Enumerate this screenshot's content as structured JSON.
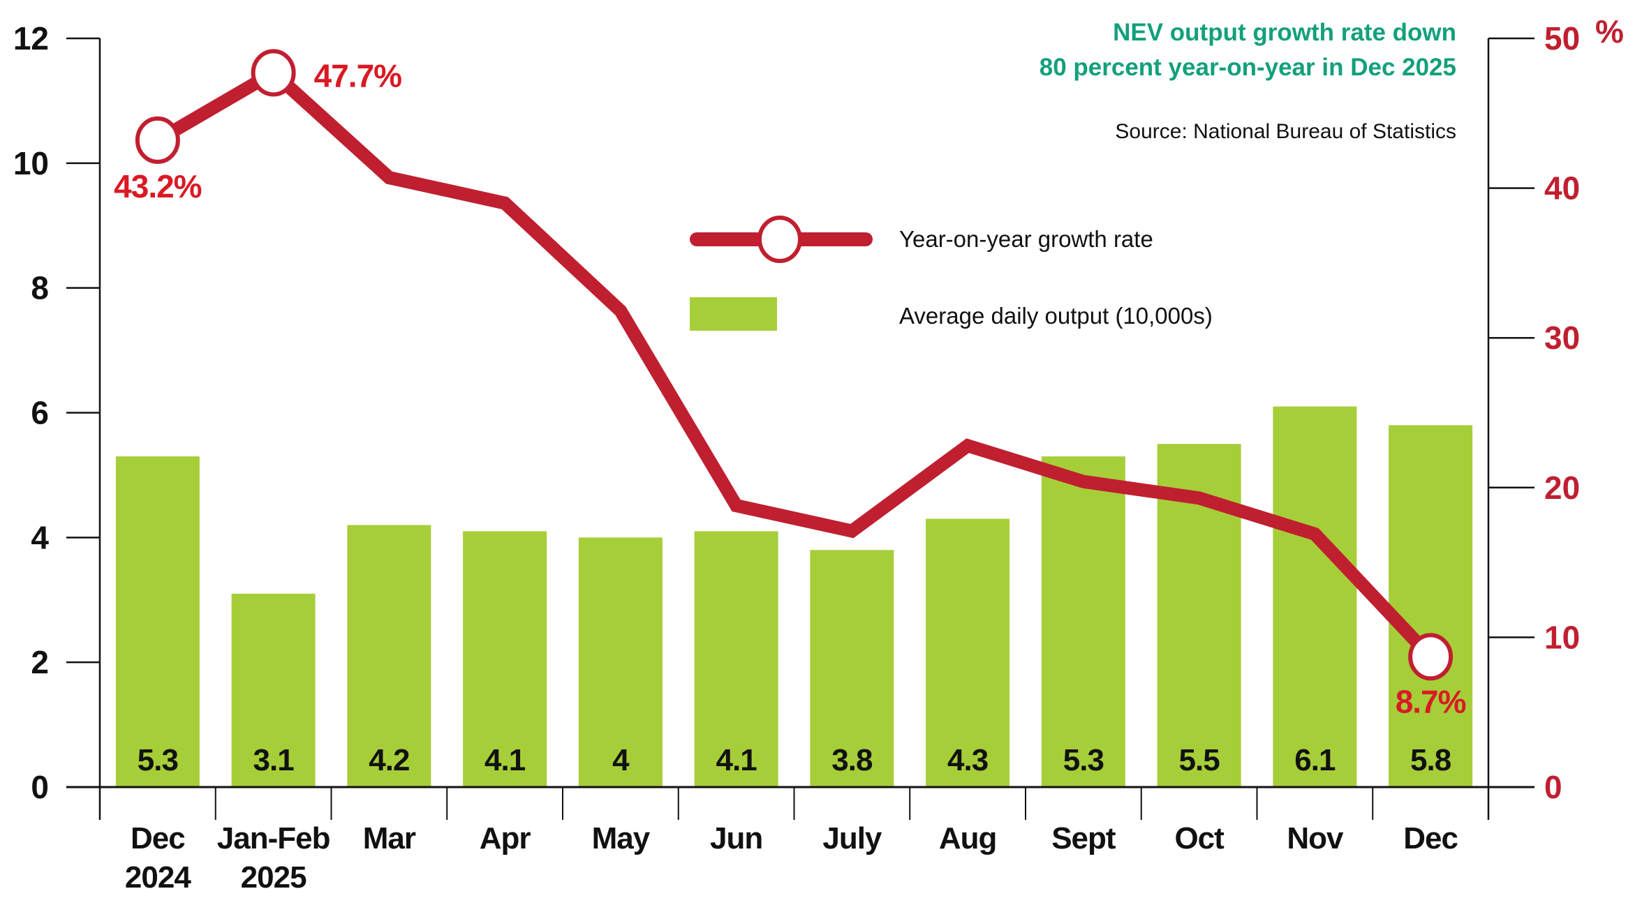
{
  "chart_data": {
    "type": "bar+line",
    "title": "NEV output growth rate down",
    "title_line2": "80 percent year-on-year in Dec 2025",
    "source": "Source: National Bureau of Statistics",
    "categories": [
      [
        "Dec",
        "2024"
      ],
      [
        "Jan-Feb",
        "2025"
      ],
      [
        "Mar"
      ],
      [
        "Apr"
      ],
      [
        "May"
      ],
      [
        "Jun"
      ],
      [
        "July"
      ],
      [
        "Aug"
      ],
      [
        "Sept"
      ],
      [
        "Oct"
      ],
      [
        "Nov"
      ],
      [
        "Dec"
      ]
    ],
    "series": [
      {
        "name": "Average daily output (10,000s)",
        "type": "bar",
        "axis": "left",
        "color": "#a6ce39",
        "values": [
          5.3,
          3.1,
          4.2,
          4.1,
          4,
          4.1,
          3.8,
          4.3,
          5.3,
          5.5,
          6.1,
          5.8
        ],
        "labels": [
          "5.3",
          "3.1",
          "4.2",
          "4.1",
          "4",
          "4.1",
          "3.8",
          "4.3",
          "5.3",
          "5.5",
          "6.1",
          "5.8"
        ]
      },
      {
        "name": "Year-on-year growth rate",
        "type": "line",
        "axis": "right",
        "color": "#c01f30",
        "values": [
          43.2,
          47.7,
          40.7,
          39.0,
          31.8,
          18.8,
          17.1,
          22.8,
          20.4,
          19.3,
          16.9,
          8.7
        ],
        "annotations": [
          {
            "index": 0,
            "text": "43.2%"
          },
          {
            "index": 1,
            "text": "47.7%"
          },
          {
            "index": 11,
            "text": "8.7%"
          }
        ],
        "markers_at": [
          0,
          1,
          11
        ]
      }
    ],
    "y_left": {
      "range": [
        0,
        12
      ],
      "ticks": [
        "0",
        "2",
        "4",
        "6",
        "8",
        "10",
        "12"
      ]
    },
    "y_right": {
      "range": [
        0,
        50
      ],
      "ticks": [
        "0",
        "10",
        "20",
        "30",
        "40",
        "50"
      ],
      "unit": "%"
    },
    "legend": {
      "placement": "center-top",
      "items": [
        "Year-on-year growth rate",
        "Average daily output (10,000s)"
      ]
    },
    "grid": false
  }
}
